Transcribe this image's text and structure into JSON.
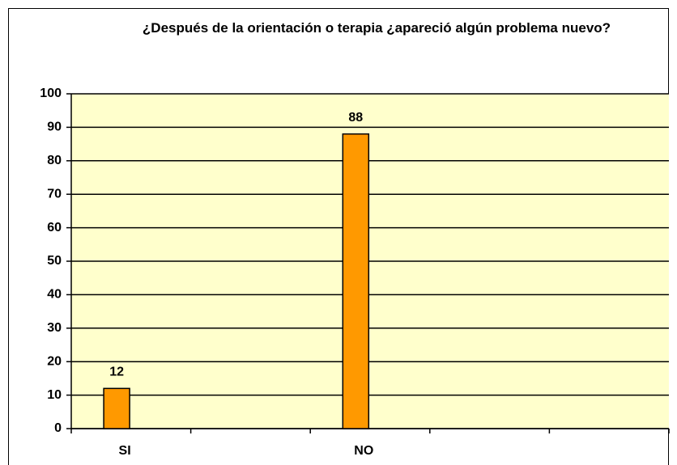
{
  "chart_data": {
    "type": "bar",
    "title": "¿Después de la orientación o terapia ¿apareció algún problema nuevo?",
    "categories": [
      "SI",
      null,
      "NO",
      null,
      null
    ],
    "values": [
      12,
      null,
      88,
      null,
      null
    ],
    "color": "#ff9900",
    "ylim": [
      0,
      100
    ],
    "yticks": [
      0,
      10,
      20,
      30,
      40,
      50,
      60,
      70,
      80,
      90,
      100
    ],
    "grid": true
  }
}
